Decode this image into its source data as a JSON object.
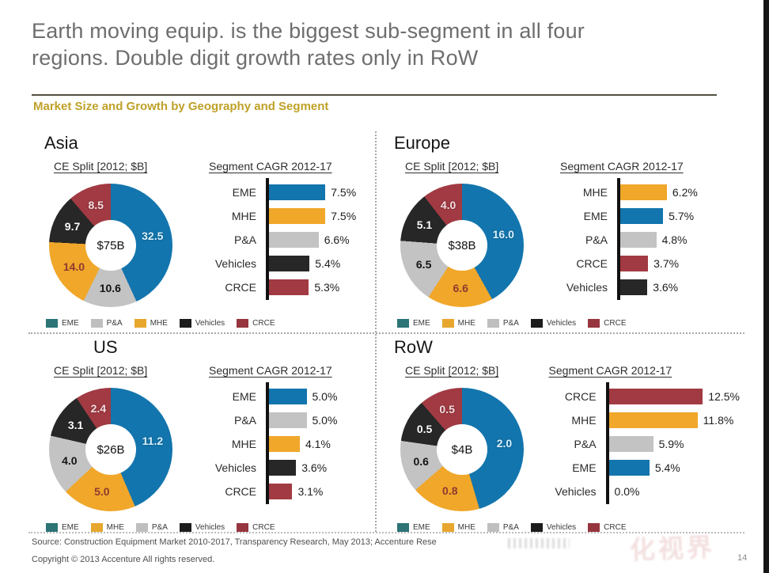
{
  "slide": {
    "title_line1": "Earth moving equip. is the biggest sub-segment in all four",
    "title_line2": "regions. Double digit growth rates only in RoW",
    "subtitle": "Market Size and Growth by Geography and Segment",
    "footer": {
      "source": "Source: Construction Equipment Market 2010-2017, Transparency Research, May 2013; Accenture Rese",
      "copyright": "Copyright © 2013 Accenture All rights reserved.",
      "page_number": "14",
      "watermark": "化视界"
    }
  },
  "labels": {
    "donut_header": "CE Split [2012; $B]",
    "bar_header": "Segment CAGR 2012-17"
  },
  "palette": {
    "segments": {
      "EME": {
        "fill": "#1375ad",
        "legend": "#2c7476",
        "label": "#d8f1ff",
        "label_shadow": true
      },
      "MHE": {
        "fill": "#f0a72a",
        "legend": "#e7a72e",
        "label": "#8e3a30",
        "label_shadow": false
      },
      "P&A": {
        "fill": "#c3c3c3",
        "legend": "#bfbfbf",
        "label": "#141414",
        "label_shadow": false
      },
      "Vehicles": {
        "fill": "#272727",
        "legend": "#1c1c1c",
        "label": "#ffffff",
        "label_shadow": true
      },
      "CRCE": {
        "fill": "#a13a42",
        "legend": "#97353f",
        "label": "#f3dcde",
        "label_shadow": true
      }
    },
    "accent_gold": "#bfa129",
    "edge_bar": "#161616"
  },
  "chart_data": [
    {
      "region": "Asia",
      "donut": {
        "type": "pie",
        "title": "CE Split [2012; $B]",
        "center_label": "$75B",
        "unit": "$B",
        "segments": [
          {
            "name": "EME",
            "value": 32.5
          },
          {
            "name": "P&A",
            "value": 10.6
          },
          {
            "name": "MHE",
            "value": 14.0
          },
          {
            "name": "Vehicles",
            "value": 9.7
          },
          {
            "name": "CRCE",
            "value": 8.5
          }
        ]
      },
      "bars": {
        "type": "bar",
        "title": "Segment CAGR 2012-17",
        "orientation": "horizontal",
        "unit": "%",
        "items": [
          {
            "name": "EME",
            "value": 7.5,
            "label": "7.5%"
          },
          {
            "name": "MHE",
            "value": 7.5,
            "label": "7.5%"
          },
          {
            "name": "P&A",
            "value": 6.6,
            "label": "6.6%"
          },
          {
            "name": "Vehicles",
            "value": 5.4,
            "label": "5.4%"
          },
          {
            "name": "CRCE",
            "value": 5.3,
            "label": "5.3%"
          }
        ]
      }
    },
    {
      "region": "Europe",
      "donut": {
        "type": "pie",
        "title": "CE Split [2012; $B]",
        "center_label": "$38B",
        "unit": "$B",
        "segments": [
          {
            "name": "EME",
            "value": 16.0
          },
          {
            "name": "MHE",
            "value": 6.6
          },
          {
            "name": "P&A",
            "value": 6.5
          },
          {
            "name": "Vehicles",
            "value": 5.1
          },
          {
            "name": "CRCE",
            "value": 4.0
          }
        ]
      },
      "bars": {
        "type": "bar",
        "title": "Segment CAGR 2012-17",
        "orientation": "horizontal",
        "unit": "%",
        "items": [
          {
            "name": "MHE",
            "value": 6.2,
            "label": "6.2%"
          },
          {
            "name": "EME",
            "value": 5.7,
            "label": "5.7%"
          },
          {
            "name": "P&A",
            "value": 4.8,
            "label": "4.8%"
          },
          {
            "name": "CRCE",
            "value": 3.7,
            "label": "3.7%"
          },
          {
            "name": "Vehicles",
            "value": 3.6,
            "label": "3.6%"
          }
        ]
      }
    },
    {
      "region": "US",
      "donut": {
        "type": "pie",
        "title": "CE Split [2012; $B]",
        "center_label": "$26B",
        "unit": "$B",
        "segments": [
          {
            "name": "EME",
            "value": 11.2
          },
          {
            "name": "MHE",
            "value": 5.0
          },
          {
            "name": "P&A",
            "value": 4.0
          },
          {
            "name": "Vehicles",
            "value": 3.1
          },
          {
            "name": "CRCE",
            "value": 2.4
          }
        ]
      },
      "bars": {
        "type": "bar",
        "title": "Segment CAGR 2012-17",
        "orientation": "horizontal",
        "unit": "%",
        "items": [
          {
            "name": "EME",
            "value": 5.0,
            "label": "5.0%"
          },
          {
            "name": "P&A",
            "value": 5.0,
            "label": "5.0%"
          },
          {
            "name": "MHE",
            "value": 4.1,
            "label": "4.1%"
          },
          {
            "name": "Vehicles",
            "value": 3.6,
            "label": "3.6%"
          },
          {
            "name": "CRCE",
            "value": 3.1,
            "label": "3.1%"
          }
        ]
      }
    },
    {
      "region": "RoW",
      "donut": {
        "type": "pie",
        "title": "CE Split [2012; $B]",
        "center_label": "$4B",
        "unit": "$B",
        "segments": [
          {
            "name": "EME",
            "value": 2.0
          },
          {
            "name": "MHE",
            "value": 0.8
          },
          {
            "name": "P&A",
            "value": 0.6
          },
          {
            "name": "Vehicles",
            "value": 0.5
          },
          {
            "name": "CRCE",
            "value": 0.5
          }
        ]
      },
      "bars": {
        "type": "bar",
        "title": "Segment CAGR 2012-17",
        "orientation": "horizontal",
        "unit": "%",
        "items": [
          {
            "name": "CRCE",
            "value": 12.5,
            "label": "12.5%"
          },
          {
            "name": "MHE",
            "value": 11.8,
            "label": "11.8%"
          },
          {
            "name": "P&A",
            "value": 5.9,
            "label": "5.9%"
          },
          {
            "name": "EME",
            "value": 5.4,
            "label": "5.4%"
          },
          {
            "name": "Vehicles",
            "value": 0.0,
            "label": "0.0%"
          }
        ]
      }
    }
  ]
}
